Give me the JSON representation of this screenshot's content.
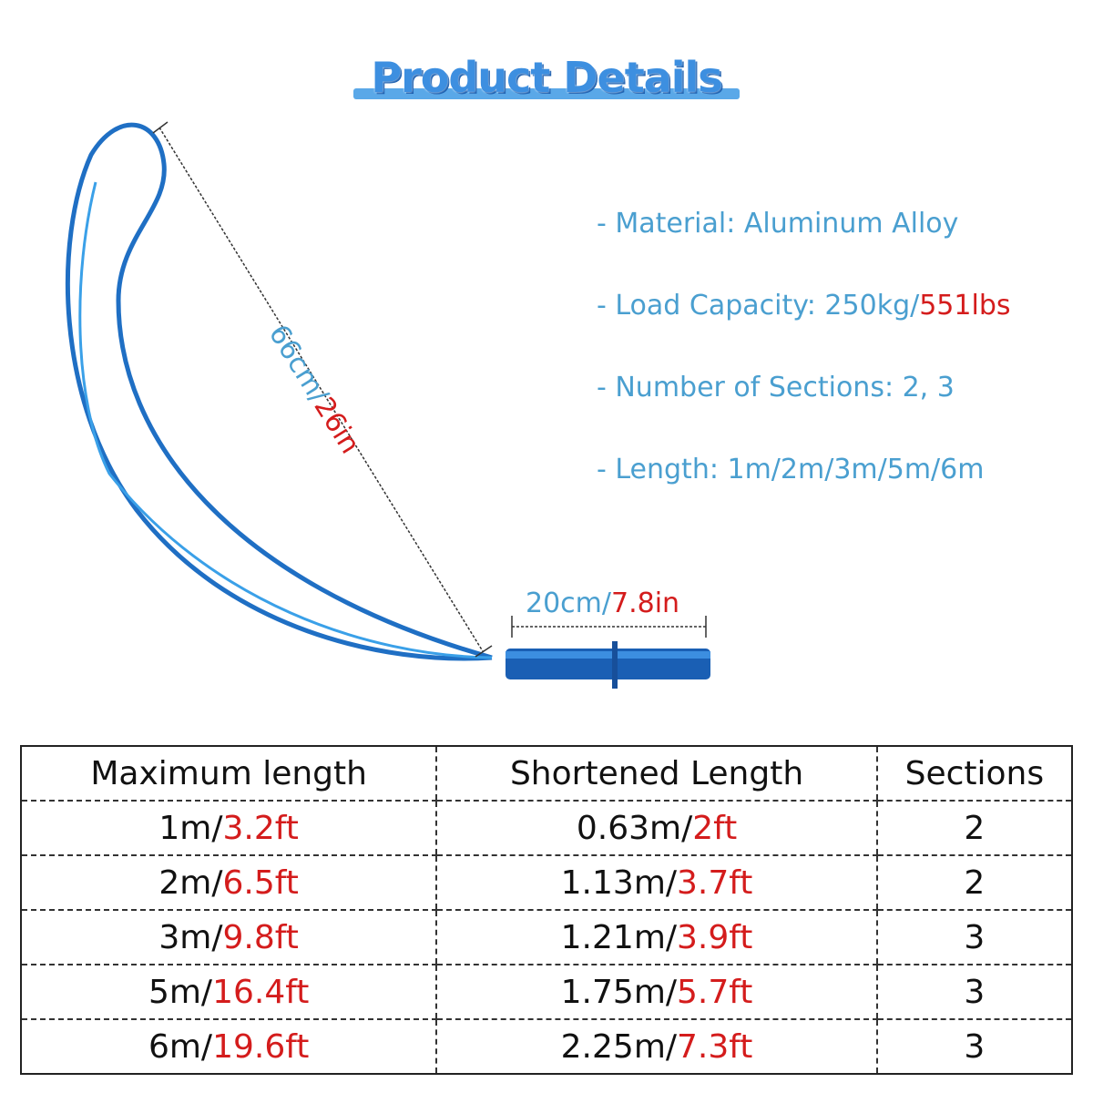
{
  "header": {
    "title": "Product Details"
  },
  "specs": [
    [
      "- Material: Aluminum Alloy"
    ],
    [
      "- Load Capacity: 250kg/",
      "551lbs"
    ],
    [
      "- Number of Sections: 2, 3"
    ],
    [
      "- Length: 1m/2m/3m/5m/6m"
    ]
  ],
  "dimensions": {
    "loop": [
      "66cm/",
      "26in"
    ],
    "handle": [
      "20cm/",
      "7.8in"
    ]
  },
  "table": {
    "headers": [
      "Maximum length",
      "Shortened Length",
      "Sections"
    ],
    "rows": [
      [
        [
          "1m/",
          "3.2ft"
        ],
        [
          "0.63m/",
          "2ft"
        ],
        2
      ],
      [
        [
          "2m/",
          "6.5ft"
        ],
        [
          "1.13m/",
          "3.7ft"
        ],
        2
      ],
      [
        [
          "3m/",
          "9.8ft"
        ],
        [
          "1.21m/",
          "3.9ft"
        ],
        3
      ],
      [
        [
          "5m/",
          "16.4ft"
        ],
        [
          "1.75m/",
          "5.7ft"
        ],
        3
      ],
      [
        [
          "6m/",
          "19.6ft"
        ],
        [
          "2.25m/",
          "7.3ft"
        ],
        3
      ]
    ]
  }
}
